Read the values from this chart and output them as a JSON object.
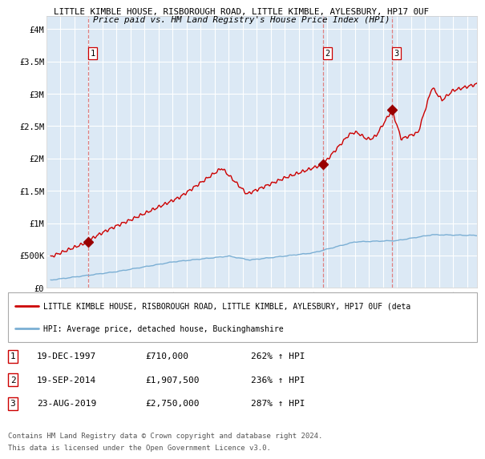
{
  "title1": "LITTLE KIMBLE HOUSE, RISBOROUGH ROAD, LITTLE KIMBLE, AYLESBURY, HP17 0UF",
  "title2": "Price paid vs. HM Land Registry's House Price Index (HPI)",
  "ylim": [
    0,
    4200000
  ],
  "xlim_start": 1995.3,
  "xlim_end": 2025.7,
  "yticks": [
    0,
    500000,
    1000000,
    1500000,
    2000000,
    2500000,
    3000000,
    3500000,
    4000000
  ],
  "ytick_labels": [
    "£0",
    "£500K",
    "£1M",
    "£1.5M",
    "£2M",
    "£2.5M",
    "£3M",
    "£3.5M",
    "£4M"
  ],
  "xticks": [
    1995,
    1996,
    1997,
    1998,
    1999,
    2000,
    2001,
    2002,
    2003,
    2004,
    2005,
    2006,
    2007,
    2008,
    2009,
    2010,
    2011,
    2012,
    2013,
    2014,
    2015,
    2016,
    2017,
    2018,
    2019,
    2020,
    2021,
    2022,
    2023,
    2024,
    2025
  ],
  "bg_color": "#dce9f5",
  "grid_color": "#ffffff",
  "red_line_color": "#cc0000",
  "blue_line_color": "#7bafd4",
  "dashed_line_color": "#e08080",
  "marker_color": "#990000",
  "sales": [
    {
      "date_num": 1997.97,
      "price": 710000,
      "label": "1"
    },
    {
      "date_num": 2014.72,
      "price": 1907500,
      "label": "2"
    },
    {
      "date_num": 2019.64,
      "price": 2750000,
      "label": "3"
    }
  ],
  "table_rows": [
    {
      "num": "1",
      "date": "19-DEC-1997",
      "price": "£710,000",
      "hpi": "262% ↑ HPI"
    },
    {
      "num": "2",
      "date": "19-SEP-2014",
      "price": "£1,907,500",
      "hpi": "236% ↑ HPI"
    },
    {
      "num": "3",
      "date": "23-AUG-2019",
      "price": "£2,750,000",
      "hpi": "287% ↑ HPI"
    }
  ],
  "legend1": "LITTLE KIMBLE HOUSE, RISBOROUGH ROAD, LITTLE KIMBLE, AYLESBURY, HP17 0UF (deta",
  "legend2": "HPI: Average price, detached house, Buckinghamshire",
  "footnote1": "Contains HM Land Registry data © Crown copyright and database right 2024.",
  "footnote2": "This data is licensed under the Open Government Licence v3.0."
}
